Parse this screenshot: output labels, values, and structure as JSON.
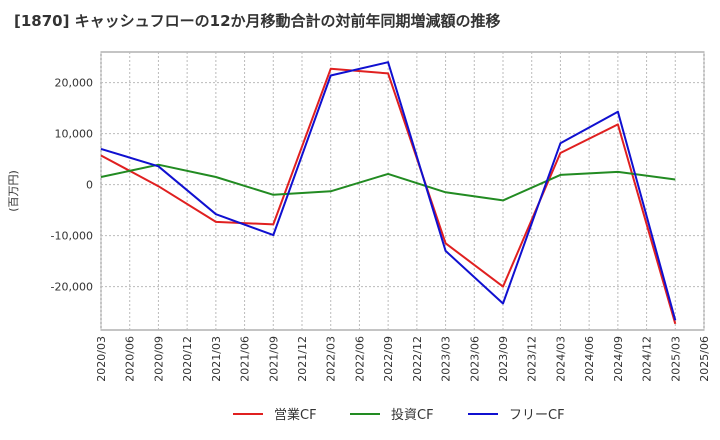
{
  "chart_data": {
    "type": "line",
    "title": "[1870]  キャッシュフローの12か月移動合計の対前年同期増減額の推移",
    "ylabel": "(百万円)",
    "xlabel": "",
    "x_ticks": [
      "2020/03",
      "2020/06",
      "2020/09",
      "2020/12",
      "2021/03",
      "2021/06",
      "2021/09",
      "2021/12",
      "2022/03",
      "2022/06",
      "2022/09",
      "2022/12",
      "2023/03",
      "2023/06",
      "2023/09",
      "2023/12",
      "2024/03",
      "2024/06",
      "2024/09",
      "2024/12",
      "2025/03",
      "2025/06"
    ],
    "y_ticks": [
      20000,
      10000,
      0,
      -10000,
      -20000
    ],
    "y_tick_labels": [
      "20,000",
      "10,000",
      "0",
      "-10,000",
      "-20,000"
    ],
    "ylim": [
      -28500,
      26000
    ],
    "grid": true,
    "legend_position": "bottom",
    "series": [
      {
        "name": "営業CF",
        "color": "#e02020",
        "x": [
          "2020/03",
          "2020/09",
          "2021/03",
          "2021/09",
          "2022/03",
          "2022/09",
          "2023/03",
          "2023/09",
          "2024/03",
          "2024/09",
          "2025/03"
        ],
        "values": [
          5700,
          -300,
          -7300,
          -7800,
          22700,
          21800,
          -11500,
          -20000,
          6200,
          11800,
          -27300
        ]
      },
      {
        "name": "投資CF",
        "color": "#228b22",
        "x": [
          "2020/03",
          "2020/09",
          "2021/03",
          "2021/09",
          "2022/03",
          "2022/09",
          "2023/03",
          "2023/09",
          "2024/03",
          "2024/09",
          "2025/03"
        ],
        "values": [
          1500,
          3900,
          1500,
          -2000,
          -1300,
          2100,
          -1500,
          -3100,
          1900,
          2500,
          1000
        ]
      },
      {
        "name": "フリーCF",
        "color": "#1010d0",
        "x": [
          "2020/03",
          "2020/09",
          "2021/03",
          "2021/09",
          "2022/03",
          "2022/09",
          "2023/03",
          "2023/09",
          "2024/03",
          "2024/09",
          "2025/03"
        ],
        "values": [
          7000,
          3600,
          -5800,
          -9900,
          21400,
          24000,
          -13000,
          -23300,
          8100,
          14300,
          -26600
        ]
      }
    ]
  }
}
